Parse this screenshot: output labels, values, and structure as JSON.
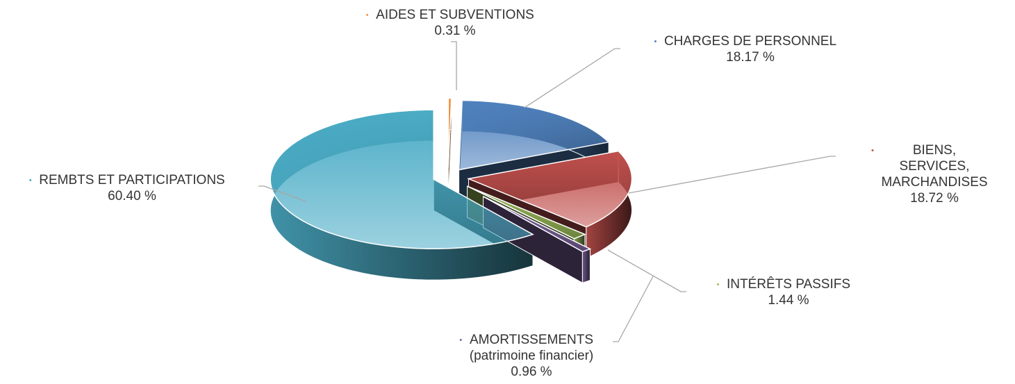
{
  "chart_data": {
    "type": "pie",
    "categories": [
      "AIDES ET SUBVENTIONS",
      "CHARGES DE PERSONNEL",
      "BIENS, SERVICES,\nMARCHANDISES",
      "INTÉRÊTS PASSIFS",
      "AMORTISSEMENTS\n(patrimoine financier)",
      "REMBTS ET PARTICIPATIONS"
    ],
    "values": [
      0.31,
      18.17,
      18.72,
      1.44,
      0.96,
      60.4
    ],
    "value_labels": [
      "0.31 %",
      "18.17 %",
      "18.72 %",
      "1.44 %",
      "0.96 %",
      "60.40 %"
    ],
    "colors": [
      "#f79646",
      "#4f81bd",
      "#c0504d",
      "#9bbb59",
      "#8064a2",
      "#4bacc6"
    ]
  }
}
